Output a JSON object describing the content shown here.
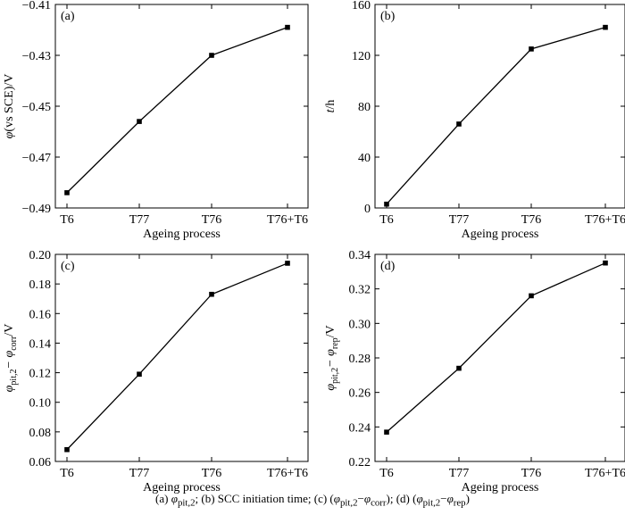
{
  "chart_data": [
    {
      "type": "line",
      "panel_label": "(a)",
      "categories": [
        "T6",
        "T77",
        "T76",
        "T76+T6"
      ],
      "values": [
        -0.484,
        -0.456,
        -0.43,
        -0.419
      ],
      "xlabel": "Ageing process",
      "ylabel_main": "φ",
      "ylabel_rest": "(vs SCE)/V",
      "ylim": [
        -0.49,
        -0.41
      ],
      "yticks": [
        "-0.49",
        "-0.47",
        "-0.45",
        "-0.43",
        "-0.41"
      ],
      "grid": false
    },
    {
      "type": "line",
      "panel_label": "(b)",
      "categories": [
        "T6",
        "T77",
        "T76",
        "T76+T6"
      ],
      "values": [
        3,
        66,
        125,
        142
      ],
      "xlabel": "Ageing process",
      "ylabel_main": "t",
      "ylabel_rest": "/h",
      "ylim": [
        0,
        160
      ],
      "yticks": [
        "0",
        "40",
        "80",
        "120",
        "160"
      ],
      "grid": false
    },
    {
      "type": "line",
      "panel_label": "(c)",
      "categories": [
        "T6",
        "T77",
        "T76",
        "T76+T6"
      ],
      "values": [
        0.068,
        0.119,
        0.173,
        0.194
      ],
      "xlabel": "Ageing process",
      "ylabel_main": "φ",
      "ylabel_sub1": "pit,2",
      "ylabel_mid": "− φ",
      "ylabel_sub2": "corr",
      "ylabel_rest": "/V",
      "ylim": [
        0.06,
        0.2
      ],
      "yticks": [
        "0.06",
        "0.08",
        "0.10",
        "0.12",
        "0.14",
        "0.16",
        "0.18",
        "0.20"
      ],
      "grid": false
    },
    {
      "type": "line",
      "panel_label": "(d)",
      "categories": [
        "T6",
        "T77",
        "T76",
        "T76+T6"
      ],
      "values": [
        0.237,
        0.274,
        0.316,
        0.335
      ],
      "xlabel": "Ageing process",
      "ylabel_main": "φ",
      "ylabel_sub1": "pit,2",
      "ylabel_mid": "− φ",
      "ylabel_sub2": "rep",
      "ylabel_rest": "/V",
      "ylim": [
        0.22,
        0.34
      ],
      "yticks": [
        "0.22",
        "0.24",
        "0.26",
        "0.28",
        "0.30",
        "0.32",
        "0.34"
      ],
      "grid": false
    }
  ],
  "caption": {
    "a_label": "(a)",
    "a_sym": "φ",
    "a_sub": "pit,2",
    "sep1": ";  (b)  SCC  initiation  time;  (c)  (",
    "c_sym1": "φ",
    "c_sub1": "pit,2",
    "c_mid": "−",
    "c_sym2": "φ",
    "c_sub2": "corr",
    "sep2": ");  (d)  (",
    "d_sym1": "φ",
    "d_sub1": "pit,2",
    "d_mid": "−",
    "d_sym2": "φ",
    "d_sub2": "rep",
    "end": ")"
  },
  "colors": {
    "line": "#000000",
    "marker": "#000000",
    "axis": "#000000"
  }
}
